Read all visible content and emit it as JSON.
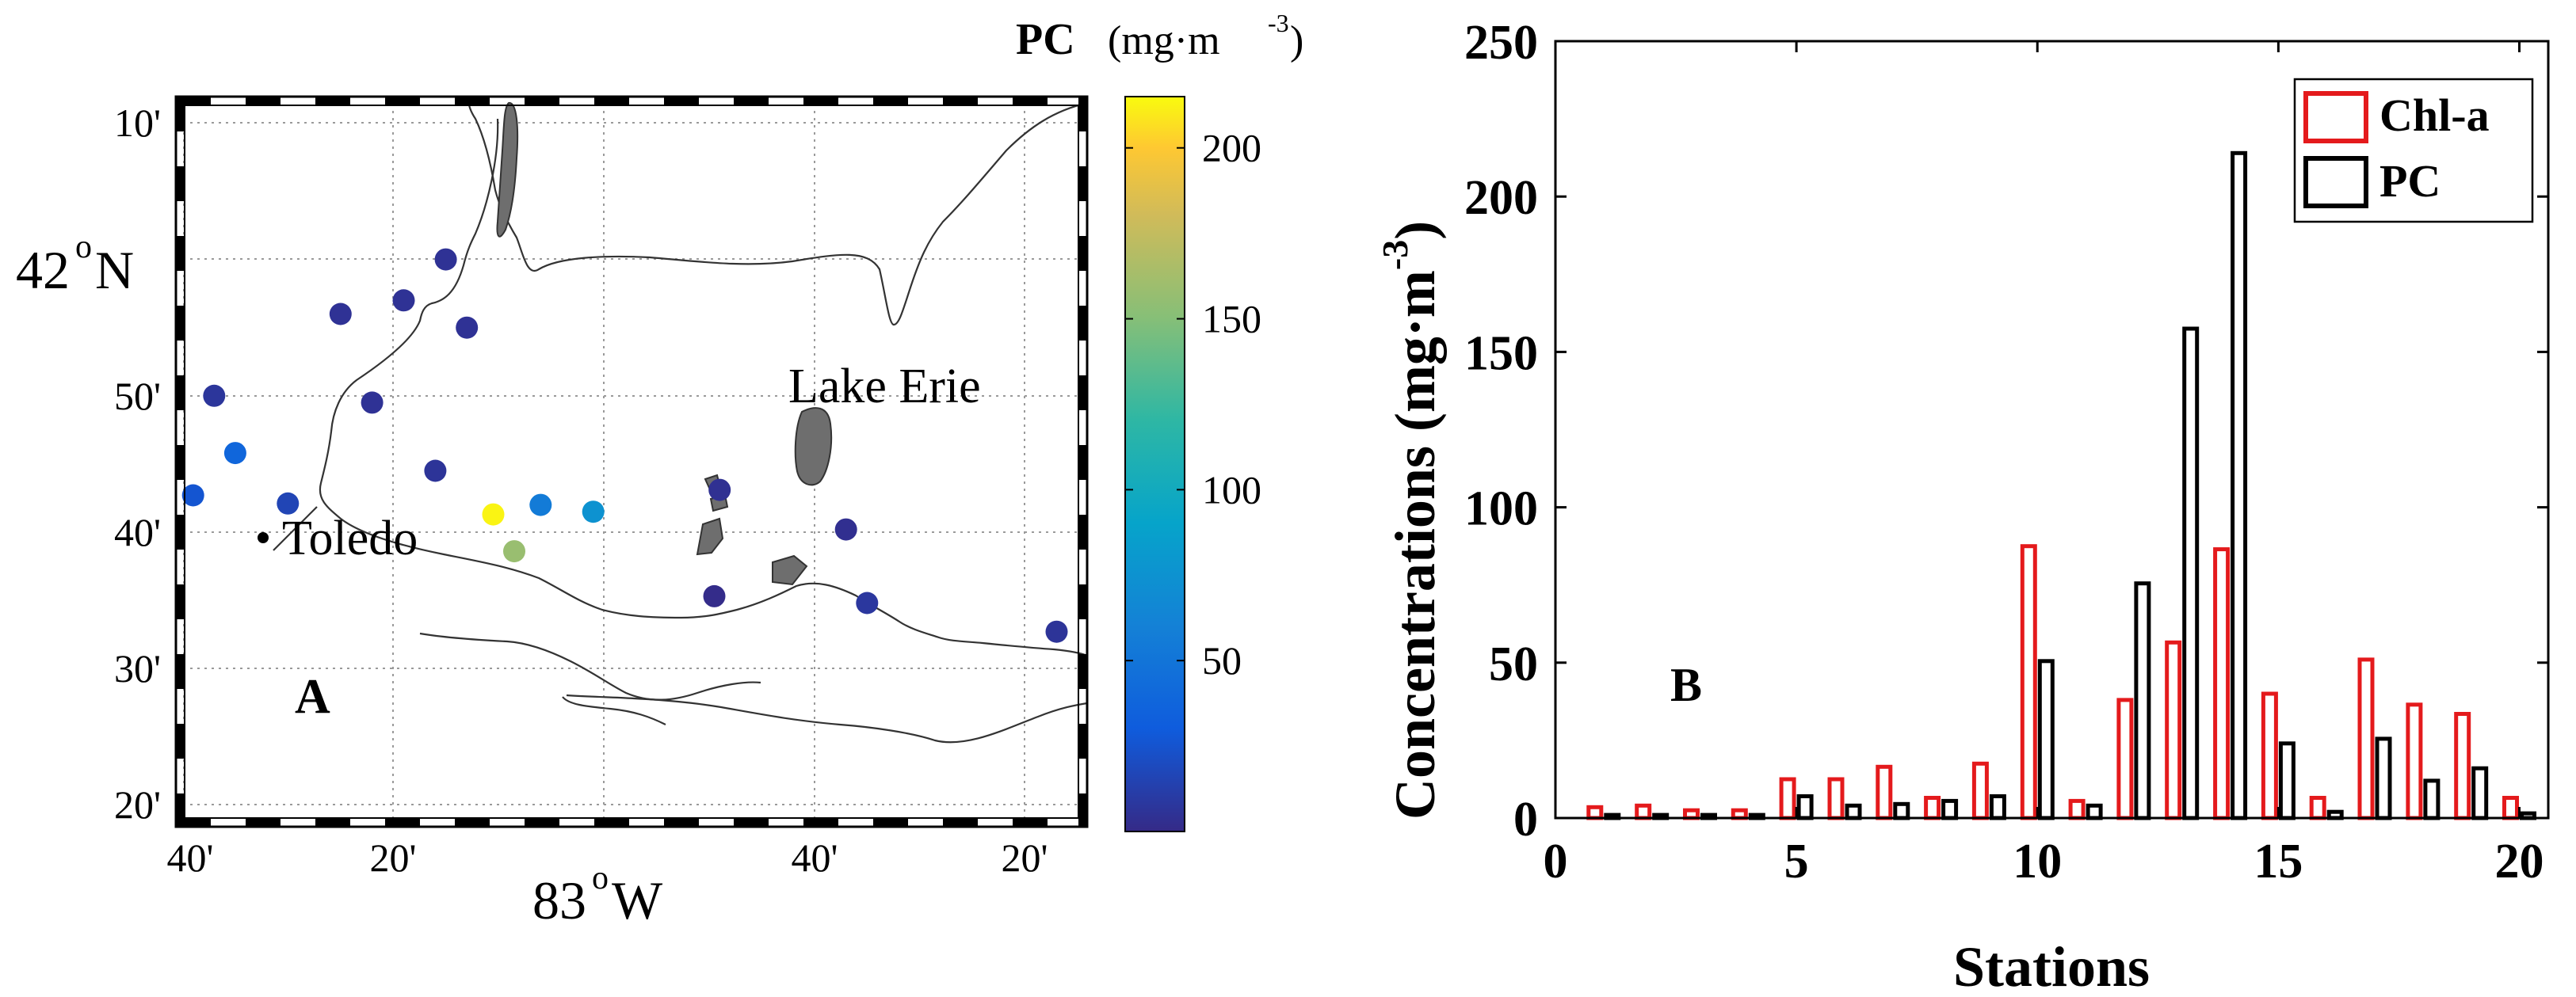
{
  "map_panel": {
    "panel_label": "A",
    "lat_ticks": [
      "10'",
      "42",
      "50'",
      "40'",
      "30'",
      "20'"
    ],
    "lat_major": {
      "num": "42",
      "deg": "o",
      "hemi": "N"
    },
    "lon_ticks": [
      "40'",
      "20'",
      "40'",
      "20'"
    ],
    "lon_major": {
      "num": "83",
      "deg": "o",
      "hemi": "W"
    },
    "lake_label": "Lake Erie",
    "city_label": "Toledo",
    "colorbar": {
      "title": "PC",
      "unit_base": "(mg·m",
      "unit_exp": "-3",
      "unit_close": ")",
      "ticks": [
        "50",
        "100",
        "150",
        "200"
      ],
      "min": 0,
      "max": 215
    },
    "stations": [
      {
        "lon_min": -15,
        "lat_min": 60,
        "pc": 5
      },
      {
        "lon_min": -19,
        "lat_min": 57,
        "pc": 5
      },
      {
        "lon_min": -25,
        "lat_min": 56,
        "pc": 5
      },
      {
        "lon_min": -13,
        "lat_min": 55,
        "pc": 5
      },
      {
        "lon_min": -37,
        "lat_min": 50,
        "pc": 7
      },
      {
        "lon_min": -22,
        "lat_min": 49.5,
        "pc": 5
      },
      {
        "lon_min": -35,
        "lat_min": 45.8,
        "pc": 38
      },
      {
        "lon_min": -16,
        "lat_min": 44.5,
        "pc": 6
      },
      {
        "lon_min": -39,
        "lat_min": 42.7,
        "pc": 26
      },
      {
        "lon_min": -30,
        "lat_min": 42.1,
        "pc": 16
      },
      {
        "lon_min": -10.5,
        "lat_min": 41.3,
        "pc": 213
      },
      {
        "lon_min": -6,
        "lat_min": 42,
        "pc": 55
      },
      {
        "lon_min": -1,
        "lat_min": 41.5,
        "pc": 75
      },
      {
        "lon_min": -8.5,
        "lat_min": 38.6,
        "pc": 158
      },
      {
        "lon_min": 11,
        "lat_min": 43.1,
        "pc": 4
      },
      {
        "lon_min": 23,
        "lat_min": 40.2,
        "pc": 3
      },
      {
        "lon_min": 10.5,
        "lat_min": 35.3,
        "pc": 1
      },
      {
        "lon_min": 25,
        "lat_min": 34.8,
        "pc": 8
      },
      {
        "lon_min": 43,
        "lat_min": 32.7,
        "pc": 6
      }
    ]
  },
  "chart_data": {
    "type": "bar",
    "panel_label": "B",
    "xlabel": "Stations",
    "ylabel_base": "Concentrations (mg·m",
    "ylabel_exp": "-3",
    "ylabel_close": ")",
    "xlim": [
      0,
      20.6
    ],
    "ylim": [
      0,
      250
    ],
    "xticks": [
      0,
      5,
      10,
      15,
      20
    ],
    "yticks": [
      0,
      50,
      100,
      150,
      200,
      250
    ],
    "legend_position": "top-right",
    "categories": [
      1,
      2,
      3,
      4,
      5,
      6,
      7,
      8,
      9,
      10,
      11,
      12,
      13,
      14,
      15,
      16,
      17,
      18,
      19,
      20
    ],
    "series": [
      {
        "name": "Chl-a",
        "color": "#e41a1c",
        "values": [
          3.5,
          4,
          2.5,
          2.5,
          12.5,
          12.5,
          16.5,
          6.5,
          17.5,
          87.5,
          5.5,
          38,
          56.5,
          86.5,
          40,
          6.5,
          51,
          36.5,
          33.5,
          6.5
        ]
      },
      {
        "name": "PC",
        "color": "#000000",
        "values": [
          1,
          1,
          1,
          1,
          7,
          4,
          4.5,
          5.5,
          7,
          50.5,
          4,
          75.5,
          157.5,
          214,
          24,
          2,
          25.5,
          12,
          16,
          1.5
        ]
      }
    ]
  }
}
